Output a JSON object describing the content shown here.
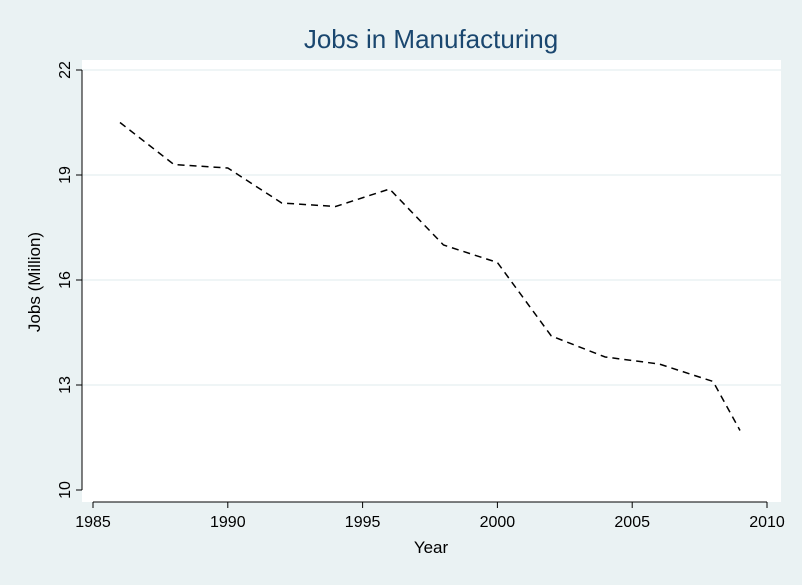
{
  "chart_data": {
    "type": "line",
    "title": "Jobs in Manufacturing",
    "xlabel": "Year",
    "ylabel": "Jobs (Million)",
    "xlim": [
      1985,
      2010
    ],
    "ylim": [
      10,
      22
    ],
    "xticks": [
      1985,
      1990,
      1995,
      2000,
      2005,
      2010
    ],
    "yticks": [
      10,
      13,
      16,
      19,
      22
    ],
    "grid": "horizontal",
    "line_style": "dashed",
    "colors": {
      "background": "#eaf2f3",
      "plot_bg": "#ffffff",
      "grid": "#eaf2f3",
      "line": "#000000",
      "title": "#1a476f"
    },
    "series": [
      {
        "x": [
          1986,
          1988,
          1990,
          1992,
          1994,
          1996,
          1998,
          2000,
          2002,
          2004,
          2006,
          2008,
          2009
        ],
        "y": [
          20.5,
          19.3,
          19.2,
          18.2,
          18.1,
          18.6,
          17.0,
          16.5,
          14.4,
          13.8,
          13.6,
          13.1,
          11.7
        ]
      }
    ]
  }
}
